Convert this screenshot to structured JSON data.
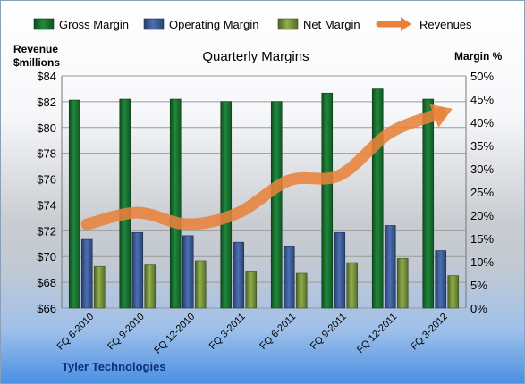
{
  "chart_data": {
    "type": "bar",
    "title": "Quarterly Margins",
    "company": "Tyler Technologies",
    "y_left_label_line1": "Revenue",
    "y_left_label_line2": "$millions",
    "y_right_label": "Margin %",
    "categories": [
      "FQ 6-2010",
      "FQ 9-2010",
      "FQ 12-2010",
      "FQ 3-2011",
      "FQ 6-2011",
      "FQ 9-2011",
      "FQ 12-2011",
      "FQ 3-2012"
    ],
    "series": [
      {
        "name": "Gross Margin",
        "axis": "right",
        "color": "#1f8a3c",
        "values": [
          44.8,
          45.0,
          45.0,
          44.5,
          44.5,
          46.3,
          47.2,
          45.0
        ]
      },
      {
        "name": "Operating Margin",
        "axis": "right",
        "color": "#4a6fb5",
        "values": [
          14.8,
          16.3,
          15.6,
          14.2,
          13.2,
          16.3,
          17.8,
          12.4
        ]
      },
      {
        "name": "Net Margin",
        "axis": "right",
        "color": "#8fb04a",
        "values": [
          9.0,
          9.3,
          10.2,
          7.8,
          7.5,
          9.8,
          10.7,
          7.0
        ]
      },
      {
        "name": "Revenues",
        "axis": "left",
        "type": "line",
        "color": "#e8823a",
        "values": [
          72.5,
          73.4,
          72.5,
          73.4,
          75.9,
          76.3,
          79.6,
          81.1
        ]
      }
    ],
    "y_left_ticks": [
      "$66",
      "$68",
      "$70",
      "$72",
      "$74",
      "$76",
      "$78",
      "$80",
      "$82",
      "$84"
    ],
    "y_right_ticks": [
      "0%",
      "5%",
      "10%",
      "15%",
      "20%",
      "25%",
      "30%",
      "35%",
      "40%",
      "45%",
      "50%"
    ],
    "ylim_left": [
      66,
      84
    ],
    "ylim_right": [
      0,
      50
    ],
    "legend_position": "top"
  }
}
